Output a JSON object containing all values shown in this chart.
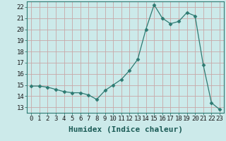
{
  "x": [
    0,
    1,
    2,
    3,
    4,
    5,
    6,
    7,
    8,
    9,
    10,
    11,
    12,
    13,
    14,
    15,
    16,
    17,
    18,
    19,
    20,
    21,
    22,
    23
  ],
  "y": [
    14.9,
    14.9,
    14.8,
    14.6,
    14.4,
    14.3,
    14.3,
    14.1,
    13.7,
    14.5,
    15.0,
    15.5,
    16.3,
    17.3,
    20.0,
    22.2,
    21.0,
    20.5,
    20.7,
    21.5,
    21.2,
    16.8,
    13.4,
    12.8
  ],
  "xlabel": "Humidex (Indice chaleur)",
  "ylim": [
    12.5,
    22.5
  ],
  "xlim": [
    -0.5,
    23.5
  ],
  "yticks": [
    13,
    14,
    15,
    16,
    17,
    18,
    19,
    20,
    21,
    22
  ],
  "xticks": [
    0,
    1,
    2,
    3,
    4,
    5,
    6,
    7,
    8,
    9,
    10,
    11,
    12,
    13,
    14,
    15,
    16,
    17,
    18,
    19,
    20,
    21,
    22,
    23
  ],
  "line_color": "#2d7a72",
  "marker": "D",
  "marker_size": 2.5,
  "bg_color": "#cceaea",
  "grid_color": "#c8a8a8",
  "axis_bg": "#cceaea",
  "xlabel_fontsize": 8,
  "tick_fontsize": 6.5
}
